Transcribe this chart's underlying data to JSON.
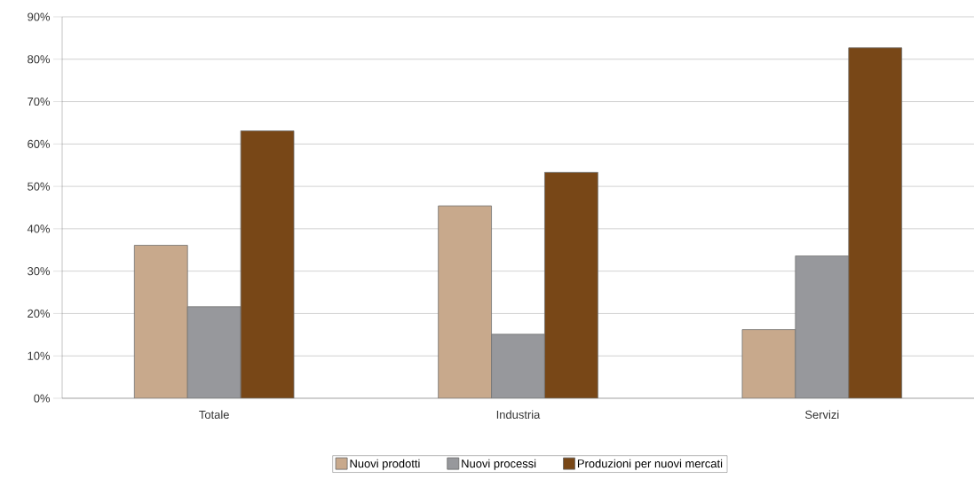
{
  "chart_data": {
    "type": "bar",
    "categories": [
      "Totale",
      "Industria",
      "Servizi"
    ],
    "series": [
      {
        "name": "Nuovi prodotti",
        "color": "#c8a98c",
        "values": [
          36.1,
          45.4,
          16.2
        ]
      },
      {
        "name": "Nuovi processi",
        "color": "#97989c",
        "values": [
          21.6,
          15.1,
          33.6
        ]
      },
      {
        "name": "Produzioni per nuovi mercati",
        "color": "#784717",
        "values": [
          63.1,
          53.3,
          82.7
        ]
      }
    ],
    "ylim": [
      0,
      90
    ],
    "yticks": [
      {
        "value": 0,
        "label": "0%"
      },
      {
        "value": 10,
        "label": "10%"
      },
      {
        "value": 20,
        "label": "20%"
      },
      {
        "value": 30,
        "label": "30%"
      },
      {
        "value": 40,
        "label": "40%"
      },
      {
        "value": 50,
        "label": "50%"
      },
      {
        "value": 60,
        "label": "60%"
      },
      {
        "value": 70,
        "label": "70%"
      },
      {
        "value": 80,
        "label": "80%"
      },
      {
        "value": 90,
        "label": "90%"
      }
    ],
    "grid": "y",
    "legend": "bottom"
  }
}
